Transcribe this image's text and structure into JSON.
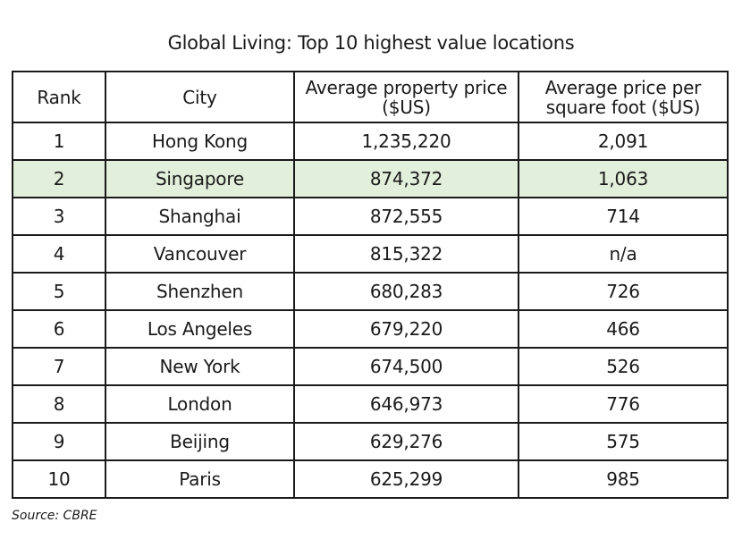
{
  "chart_data": {
    "type": "table",
    "title": "Global Living: Top 10 highest value locations",
    "columns": [
      "Rank",
      "City",
      "Average property price ($US)",
      "Average price per square foot ($US)"
    ],
    "header_lines": [
      [
        "Rank"
      ],
      [
        "City"
      ],
      [
        "Average property price",
        "($US)"
      ],
      [
        "Average price per",
        "square foot ($US)"
      ]
    ],
    "rows": [
      {
        "rank": "1",
        "city": "Hong Kong",
        "avg_price": "1,235,220",
        "price_per_sqft": "2,091"
      },
      {
        "rank": "2",
        "city": "Singapore",
        "avg_price": "874,372",
        "price_per_sqft": "1,063"
      },
      {
        "rank": "3",
        "city": "Shanghai",
        "avg_price": "872,555",
        "price_per_sqft": "714"
      },
      {
        "rank": "4",
        "city": "Vancouver",
        "avg_price": "815,322",
        "price_per_sqft": "n/a"
      },
      {
        "rank": "5",
        "city": "Shenzhen",
        "avg_price": "680,283",
        "price_per_sqft": "726"
      },
      {
        "rank": "6",
        "city": "Los Angeles",
        "avg_price": "679,220",
        "price_per_sqft": "466"
      },
      {
        "rank": "7",
        "city": "New York",
        "avg_price": "674,500",
        "price_per_sqft": "526"
      },
      {
        "rank": "8",
        "city": "London",
        "avg_price": "646,973",
        "price_per_sqft": "776"
      },
      {
        "rank": "9",
        "city": "Beijing",
        "avg_price": "629,276",
        "price_per_sqft": "575"
      },
      {
        "rank": "10",
        "city": "Paris",
        "avg_price": "625,299",
        "price_per_sqft": "985"
      }
    ],
    "highlighted_rank": "2",
    "highlight_color": "#e2efda",
    "source": "Source: CBRE"
  }
}
